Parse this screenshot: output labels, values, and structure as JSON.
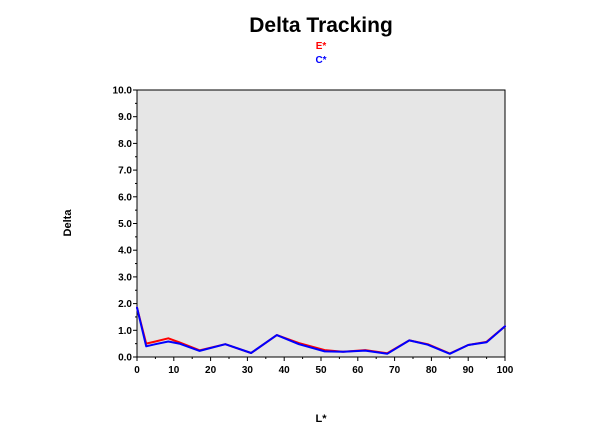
{
  "chart_data": {
    "type": "line",
    "title": "Delta Tracking",
    "xlabel": "L*",
    "ylabel": "Delta",
    "xlim": [
      0,
      100
    ],
    "ylim": [
      0,
      10
    ],
    "x_ticks": [
      "0",
      "10",
      "20",
      "30",
      "40",
      "50",
      "60",
      "70",
      "80",
      "90",
      "100"
    ],
    "y_ticks": [
      "0.0",
      "1.0",
      "2.0",
      "3.0",
      "4.0",
      "5.0",
      "6.0",
      "7.0",
      "8.0",
      "9.0",
      "10.0"
    ],
    "legend_position": "top-center",
    "grid": false,
    "plot_background": "#e6e6e6",
    "series": [
      {
        "name": "E*",
        "color": "#ff0000",
        "x": [
          0,
          2.5,
          5,
          8.5,
          11.5,
          17,
          24,
          31,
          38,
          44,
          51,
          56,
          62,
          68,
          74,
          79,
          85,
          90,
          95,
          100
        ],
        "y": [
          1.85,
          0.5,
          0.58,
          0.7,
          0.55,
          0.25,
          0.48,
          0.15,
          0.82,
          0.52,
          0.26,
          0.2,
          0.26,
          0.14,
          0.62,
          0.48,
          0.13,
          0.45,
          0.57,
          1.15
        ]
      },
      {
        "name": "C*",
        "color": "#0000ff",
        "x": [
          0,
          2.5,
          5,
          8.5,
          11.5,
          17,
          24,
          31,
          38,
          44,
          51,
          56,
          62,
          68,
          74,
          79,
          85,
          90,
          95,
          100
        ],
        "y": [
          1.85,
          0.4,
          0.48,
          0.58,
          0.5,
          0.23,
          0.48,
          0.15,
          0.82,
          0.48,
          0.21,
          0.2,
          0.24,
          0.12,
          0.62,
          0.46,
          0.12,
          0.45,
          0.55,
          1.15
        ]
      }
    ]
  }
}
